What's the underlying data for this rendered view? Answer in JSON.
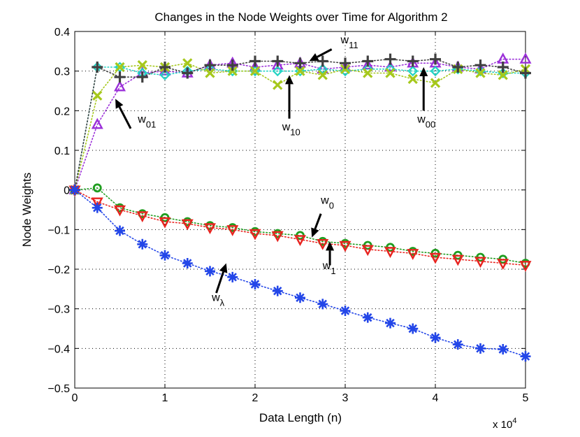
{
  "chart_data": {
    "type": "scatter",
    "title": "Changes in the Node Weights over Time for Algorithm 2",
    "xlabel": "Data Length (n)",
    "ylabel": "Node Weights",
    "x_multiplier_label": "x 10",
    "x_multiplier_exponent": "4",
    "xlim": [
      0,
      5
    ],
    "ylim": [
      -0.5,
      0.4
    ],
    "xticks": [
      0,
      1,
      2,
      3,
      4,
      5
    ],
    "xtick_labels": [
      "0",
      "1",
      "2",
      "3",
      "4",
      "5"
    ],
    "yticks": [
      -0.5,
      -0.4,
      -0.3,
      -0.2,
      -0.1,
      0,
      0.1,
      0.2,
      0.3,
      0.4
    ],
    "ytick_labels": [
      "−0.5",
      "−0.4",
      "−0.3",
      "−0.2",
      "−0.1",
      "0",
      "0.1",
      "0.2",
      "0.3",
      "0.4"
    ],
    "grid": true,
    "x": [
      0,
      0.25,
      0.5,
      0.75,
      1,
      1.25,
      1.5,
      1.75,
      2,
      2.25,
      2.5,
      2.75,
      3,
      3.25,
      3.5,
      3.75,
      4,
      4.25,
      4.5,
      4.75,
      5
    ],
    "series": [
      {
        "name": "w11",
        "marker": "triangle-up",
        "color": "#9b30d9",
        "values": [
          0,
          0.165,
          0.26,
          0.295,
          0.3,
          0.295,
          0.315,
          0.32,
          0.31,
          0.315,
          0.32,
          0.305,
          0.31,
          0.315,
          0.31,
          0.32,
          0.32,
          0.31,
          0.305,
          0.33,
          0.33
        ]
      },
      {
        "name": "w10",
        "marker": "diamond",
        "color": "#22d3c3",
        "values": [
          0,
          0.31,
          0.31,
          0.295,
          0.29,
          0.3,
          0.305,
          0.3,
          0.3,
          0.3,
          0.3,
          0.305,
          0.3,
          0.305,
          0.305,
          0.3,
          0.3,
          0.305,
          0.3,
          0.295,
          0.295
        ]
      },
      {
        "name": "w00",
        "marker": "x",
        "color": "#a6c81c",
        "values": [
          0,
          0.238,
          0.31,
          0.315,
          0.31,
          0.32,
          0.295,
          0.3,
          0.3,
          0.265,
          0.3,
          0.29,
          0.305,
          0.295,
          0.295,
          0.28,
          0.27,
          0.305,
          0.295,
          0.29,
          0.305
        ]
      },
      {
        "name": "w01",
        "marker": "plus",
        "color": "#404040",
        "values": [
          0,
          0.31,
          0.285,
          0.285,
          0.31,
          0.295,
          0.315,
          0.315,
          0.325,
          0.325,
          0.32,
          0.325,
          0.32,
          0.325,
          0.33,
          0.325,
          0.33,
          0.31,
          0.315,
          0.31,
          0.295
        ]
      },
      {
        "name": "w0",
        "marker": "circle",
        "color": "#1f9d1f",
        "values": [
          0,
          0.005,
          -0.045,
          -0.06,
          -0.07,
          -0.08,
          -0.09,
          -0.095,
          -0.105,
          -0.11,
          -0.115,
          -0.13,
          -0.135,
          -0.14,
          -0.145,
          -0.155,
          -0.16,
          -0.165,
          -0.17,
          -0.175,
          -0.185
        ]
      },
      {
        "name": "w1",
        "marker": "triangle-down",
        "color": "#e8231f",
        "values": [
          0,
          -0.03,
          -0.05,
          -0.065,
          -0.08,
          -0.085,
          -0.095,
          -0.1,
          -0.11,
          -0.115,
          -0.125,
          -0.135,
          -0.14,
          -0.15,
          -0.155,
          -0.16,
          -0.17,
          -0.175,
          -0.18,
          -0.185,
          -0.19
        ]
      },
      {
        "name": "wλ",
        "marker": "asterisk",
        "color": "#2346e8",
        "values": [
          0,
          -0.045,
          -0.103,
          -0.137,
          -0.165,
          -0.185,
          -0.205,
          -0.22,
          -0.238,
          -0.255,
          -0.272,
          -0.288,
          -0.305,
          -0.322,
          -0.336,
          -0.35,
          -0.373,
          -0.39,
          -0.4,
          -0.402,
          -0.42
        ]
      }
    ],
    "annotations": [
      {
        "base": "w",
        "sub": "11",
        "text_at": [
          2.95,
          0.37
        ],
        "arrow_from": [
          2.85,
          0.355
        ],
        "arrow_to": [
          2.6,
          0.325
        ]
      },
      {
        "base": "w",
        "sub": "01",
        "text_at": [
          0.7,
          0.17
        ],
        "arrow_from": [
          0.62,
          0.155
        ],
        "arrow_to": [
          0.45,
          0.23
        ]
      },
      {
        "base": "w",
        "sub": "10",
        "text_at": [
          2.3,
          0.15
        ],
        "arrow_from": [
          2.38,
          0.18
        ],
        "arrow_to": [
          2.38,
          0.29
        ]
      },
      {
        "base": "w",
        "sub": "00",
        "text_at": [
          3.8,
          0.17
        ],
        "arrow_from": [
          3.87,
          0.2
        ],
        "arrow_to": [
          3.87,
          0.31
        ]
      },
      {
        "base": "w",
        "sub": "0",
        "text_at": [
          2.73,
          -0.035
        ],
        "arrow_from": [
          2.73,
          -0.06
        ],
        "arrow_to": [
          2.63,
          -0.12
        ]
      },
      {
        "base": "w",
        "sub": "1",
        "text_at": [
          2.75,
          -0.2
        ],
        "arrow_from": [
          2.83,
          -0.19
        ],
        "arrow_to": [
          2.83,
          -0.13
        ]
      },
      {
        "base": "w",
        "sub": "λ",
        "text_at": [
          1.52,
          -0.28
        ],
        "arrow_from": [
          1.57,
          -0.26
        ],
        "arrow_to": [
          1.68,
          -0.185
        ]
      }
    ]
  }
}
